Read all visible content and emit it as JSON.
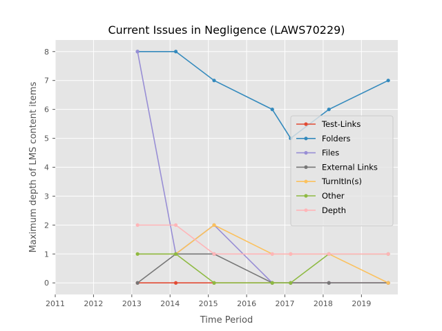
{
  "chart_data": {
    "type": "line",
    "title": "Current Issues in Negligence (LAWS70229)",
    "xlabel": "Time Period",
    "ylabel": "Maximum depth of LMS content items",
    "xlim": [
      2011,
      2019.95
    ],
    "ylim": [
      -0.4,
      8.4
    ],
    "xticks": [
      2011,
      2012,
      2013,
      2014,
      2015,
      2016,
      2017,
      2018,
      2019
    ],
    "yticks": [
      0,
      1,
      2,
      3,
      4,
      5,
      6,
      7,
      8
    ],
    "grid": true,
    "legend_position": "center-right",
    "x": [
      2013.15,
      2014.15,
      2015.15,
      2016.67,
      2017.15,
      2018.15,
      2019.7
    ],
    "series": [
      {
        "name": "Test-Links",
        "color": "#E24A33",
        "values": [
          0,
          0,
          0,
          0,
          0,
          0,
          0
        ]
      },
      {
        "name": "Folders",
        "color": "#348ABD",
        "values": [
          8,
          8,
          7,
          6,
          5,
          6,
          7
        ]
      },
      {
        "name": "Files",
        "color": "#988ED5",
        "values": [
          8,
          1,
          2,
          0,
          0,
          0,
          0
        ]
      },
      {
        "name": "External Links",
        "color": "#777777",
        "values": [
          0,
          1,
          1,
          0,
          0,
          0,
          0
        ]
      },
      {
        "name": "TurnItIn(s)",
        "color": "#FBC15E",
        "values": [
          1,
          1,
          2,
          1,
          1,
          1,
          0
        ]
      },
      {
        "name": "Other",
        "color": "#8EBA42",
        "values": [
          1,
          1,
          0,
          0,
          0,
          1,
          1
        ]
      },
      {
        "name": "Depth",
        "color": "#FFB5B8",
        "values": [
          2,
          2,
          1,
          1,
          1,
          1,
          1
        ]
      }
    ]
  }
}
